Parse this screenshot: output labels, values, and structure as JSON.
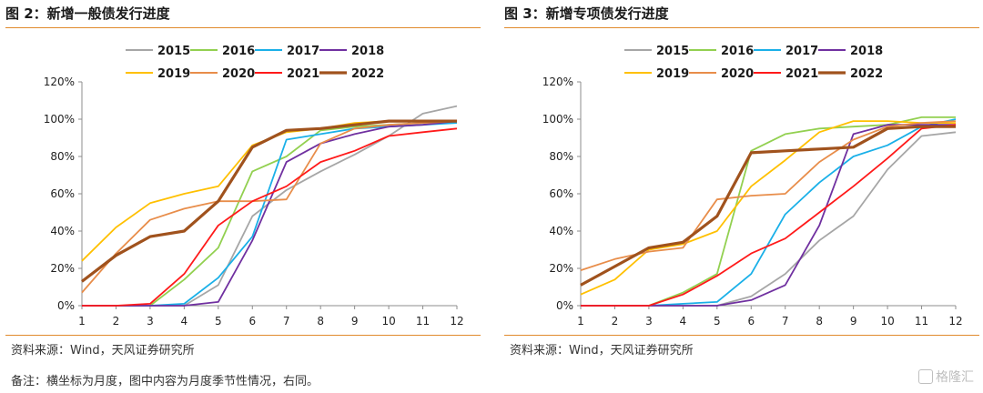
{
  "panels": [
    {
      "title": "图 2：新增一般债发行进度",
      "source": "资料来源：Wind，天风证券研究所"
    },
    {
      "title": "图 3：新增专项债发行进度",
      "source": "资料来源：Wind，天风证券研究所"
    }
  ],
  "footer": {
    "note": "备注：横坐标为月度，图中内容为月度季节性情况，右同。",
    "watermark": "格隆汇"
  },
  "chart_data": [
    {
      "type": "line",
      "title": "图 2：新增一般债发行进度",
      "xlabel": "",
      "ylabel": "",
      "x": [
        1,
        2,
        3,
        4,
        5,
        6,
        7,
        8,
        9,
        10,
        11,
        12
      ],
      "yticks": [
        "0%",
        "20%",
        "40%",
        "60%",
        "80%",
        "100%",
        "120%"
      ],
      "ylim": [
        0,
        120
      ],
      "grid": false,
      "legend_position": "top",
      "series": [
        {
          "name": "2015",
          "color": "#a6a6a6",
          "values": [
            0,
            0,
            0,
            0,
            11,
            48,
            62,
            72,
            81,
            91,
            103,
            107
          ]
        },
        {
          "name": "2016",
          "color": "#92d050",
          "values": [
            0,
            0,
            0,
            14,
            31,
            72,
            80,
            94,
            96,
            97,
            98,
            98
          ]
        },
        {
          "name": "2017",
          "color": "#1ab0e8",
          "values": [
            0,
            0,
            0,
            1,
            15,
            37,
            89,
            92,
            95,
            96,
            97,
            98
          ]
        },
        {
          "name": "2018",
          "color": "#7030a0",
          "values": [
            0,
            0,
            0,
            0,
            2,
            35,
            77,
            87,
            92,
            96,
            97,
            99
          ]
        },
        {
          "name": "2019",
          "color": "#ffc000",
          "values": [
            24,
            42,
            55,
            60,
            64,
            86,
            93,
            95,
            98,
            99,
            99,
            99
          ]
        },
        {
          "name": "2020",
          "color": "#e88d4a",
          "values": [
            7,
            28,
            46,
            52,
            56,
            56,
            57,
            87,
            95,
            97,
            98,
            99
          ]
        },
        {
          "name": "2021",
          "color": "#ff1a1a",
          "values": [
            0,
            0,
            1,
            17,
            43,
            56,
            64,
            77,
            83,
            91,
            93,
            95
          ]
        },
        {
          "name": "2022",
          "color": "#a0521d",
          "values": [
            13,
            27,
            37,
            40,
            56,
            85,
            94,
            95,
            97,
            99,
            99,
            99
          ]
        }
      ]
    },
    {
      "type": "line",
      "title": "图 3：新增专项债发行进度",
      "xlabel": "",
      "ylabel": "",
      "x": [
        1,
        2,
        3,
        4,
        5,
        6,
        7,
        8,
        9,
        10,
        11,
        12
      ],
      "yticks": [
        "0%",
        "20%",
        "40%",
        "60%",
        "80%",
        "100%",
        "120%"
      ],
      "ylim": [
        0,
        120
      ],
      "grid": false,
      "legend_position": "top",
      "series": [
        {
          "name": "2015",
          "color": "#a6a6a6",
          "values": [
            0,
            0,
            0,
            0,
            0,
            5,
            17,
            35,
            48,
            73,
            91,
            93
          ]
        },
        {
          "name": "2016",
          "color": "#92d050",
          "values": [
            0,
            0,
            0,
            7,
            17,
            83,
            92,
            95,
            96,
            97,
            101,
            101
          ]
        },
        {
          "name": "2017",
          "color": "#1ab0e8",
          "values": [
            0,
            0,
            0,
            1,
            2,
            17,
            49,
            66,
            80,
            86,
            96,
            100
          ]
        },
        {
          "name": "2018",
          "color": "#7030a0",
          "values": [
            0,
            0,
            0,
            0,
            0,
            3,
            11,
            43,
            92,
            97,
            97,
            97
          ]
        },
        {
          "name": "2019",
          "color": "#ffc000",
          "values": [
            6,
            14,
            30,
            33,
            40,
            64,
            78,
            93,
            99,
            99,
            98,
            98
          ]
        },
        {
          "name": "2020",
          "color": "#e88d4a",
          "values": [
            19,
            25,
            29,
            31,
            57,
            59,
            60,
            77,
            89,
            96,
            98,
            99
          ]
        },
        {
          "name": "2021",
          "color": "#ff1a1a",
          "values": [
            0,
            0,
            0,
            6,
            16,
            28,
            36,
            50,
            64,
            79,
            95,
            97
          ]
        },
        {
          "name": "2022",
          "color": "#a0521d",
          "values": [
            11,
            21,
            31,
            34,
            48,
            82,
            83,
            84,
            85,
            95,
            96,
            96
          ]
        }
      ]
    }
  ]
}
